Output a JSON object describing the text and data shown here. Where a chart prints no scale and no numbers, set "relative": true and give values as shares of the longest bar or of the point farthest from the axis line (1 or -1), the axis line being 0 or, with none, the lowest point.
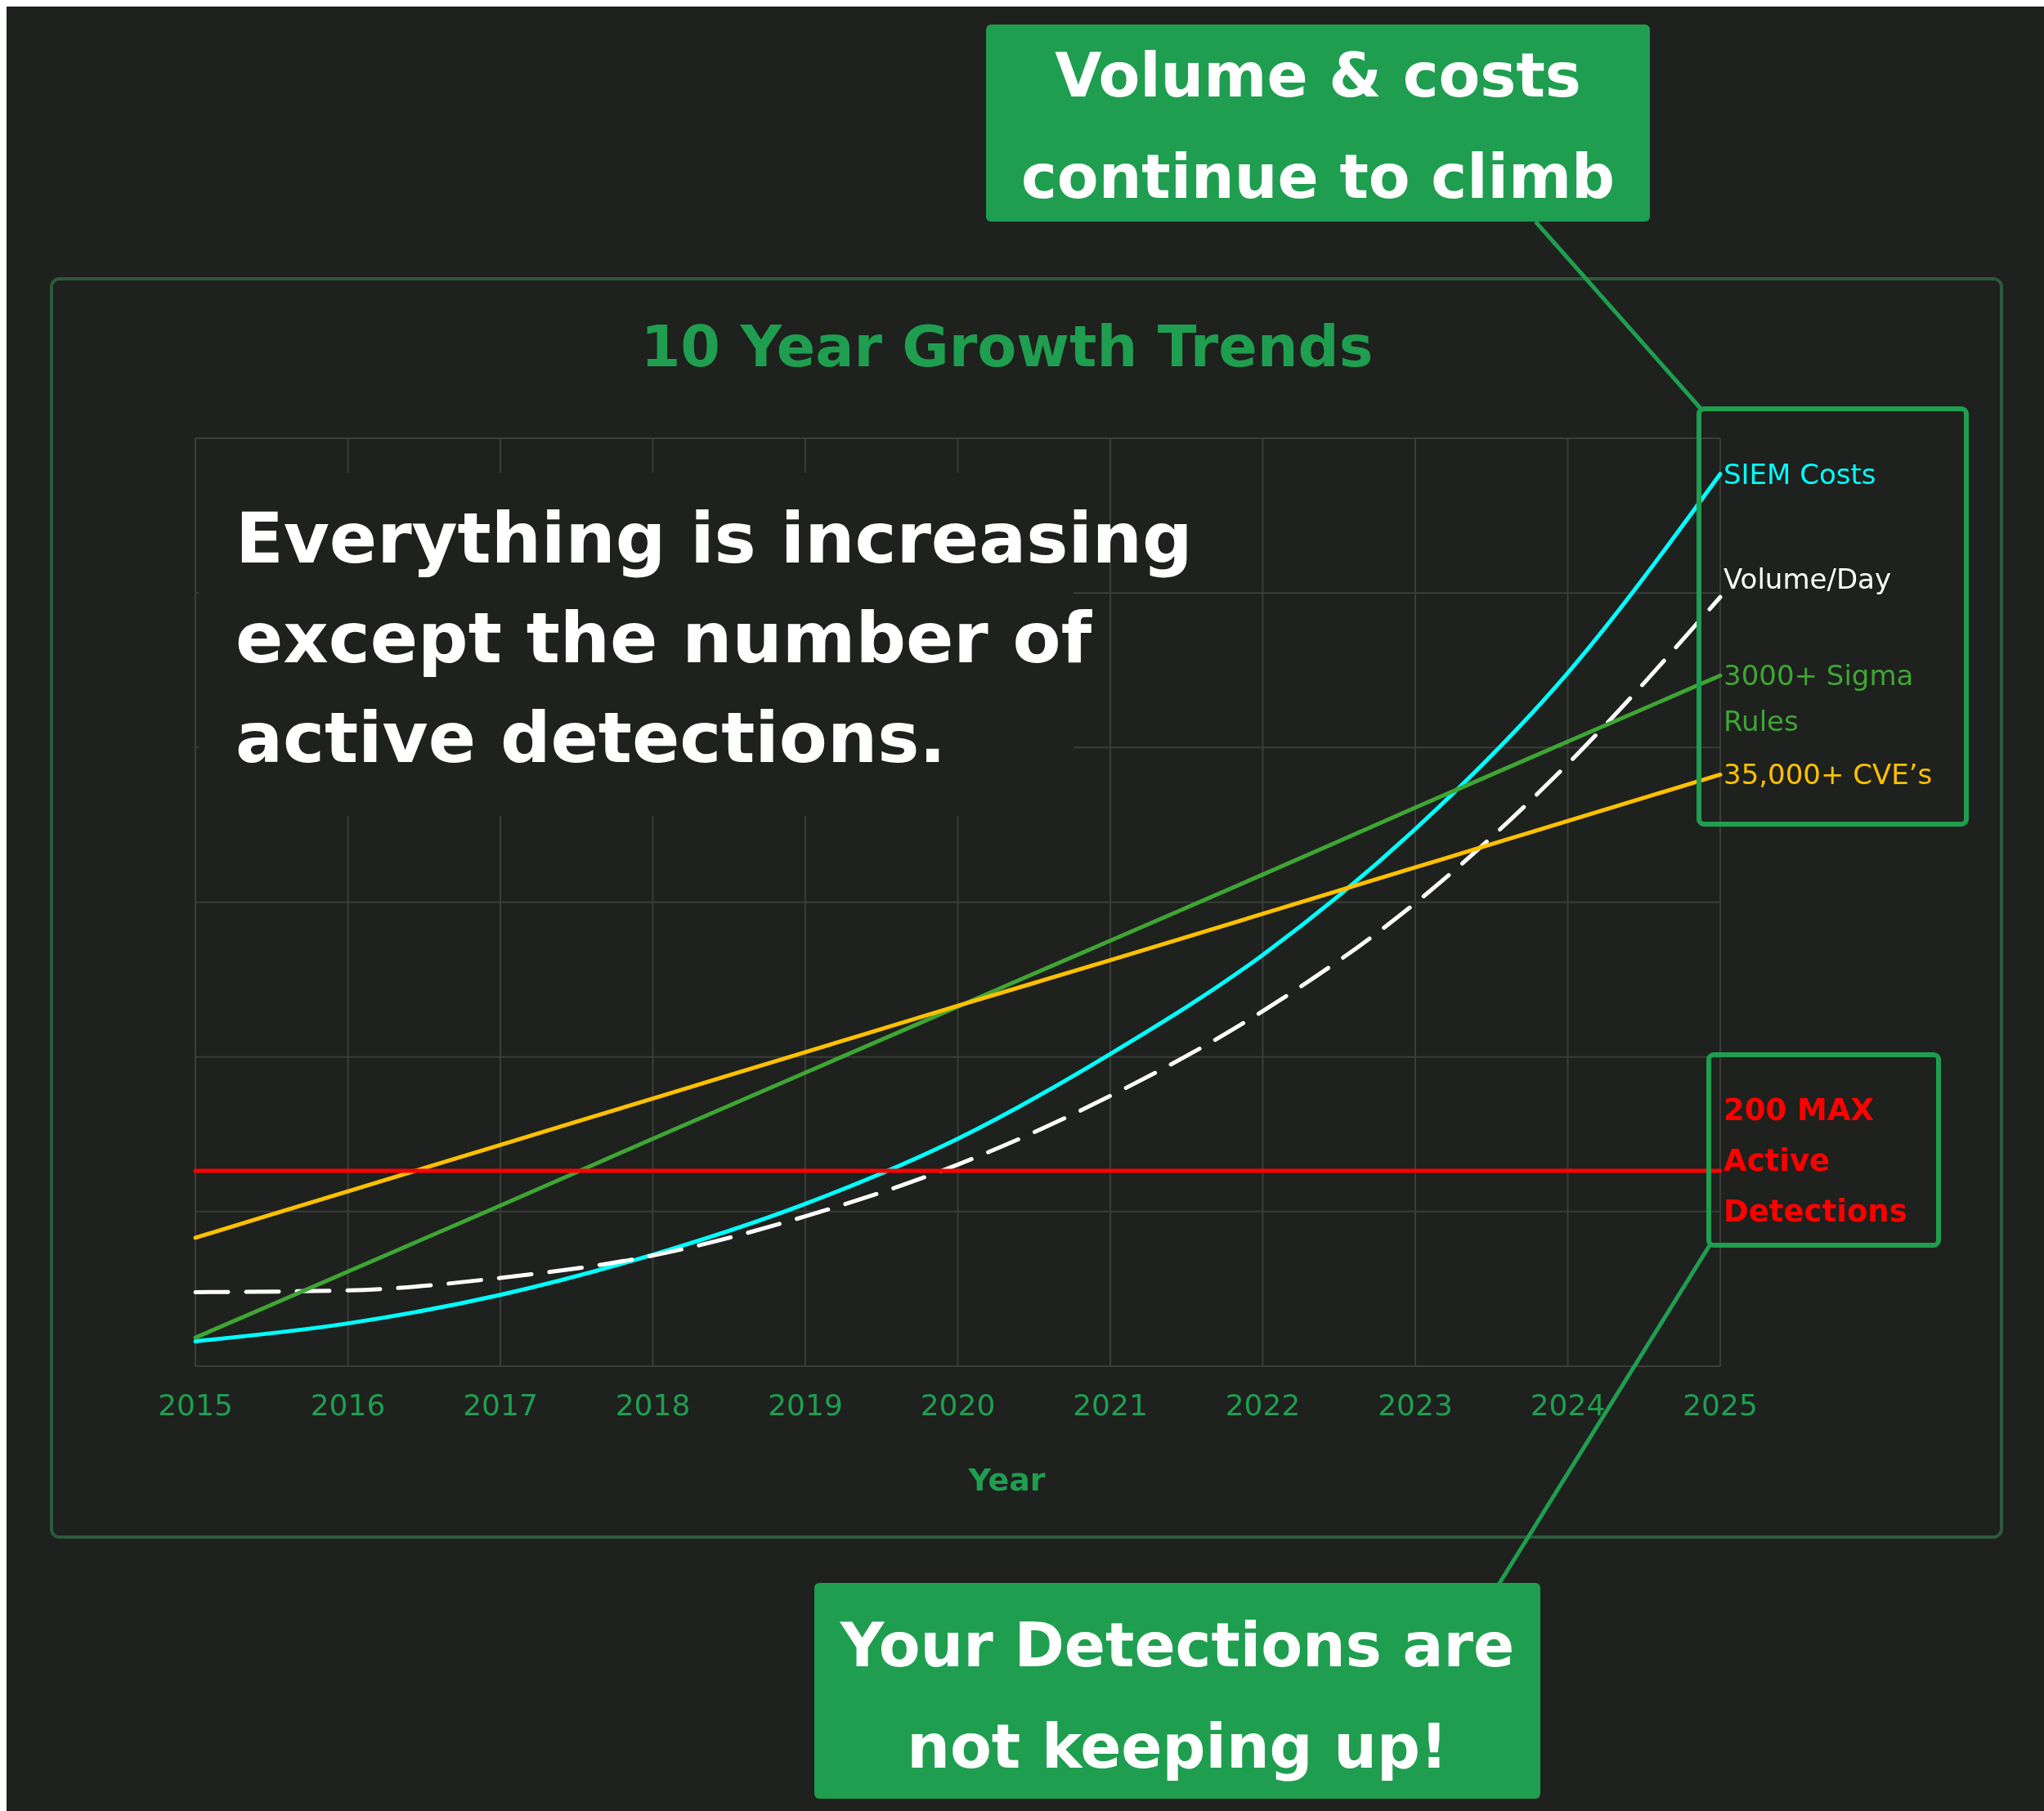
{
  "chart_data": {
    "type": "line",
    "title": "10 Year Growth Trends",
    "xlabel": "Year",
    "relative": true,
    "grid": true,
    "x": [
      2015,
      2016,
      2017,
      2018,
      2019,
      2020,
      2021,
      2022,
      2023,
      2024,
      2025
    ],
    "xlim": [
      2015,
      2025
    ],
    "xticks": [
      2015,
      2016,
      2017,
      2018,
      2019,
      2020,
      2021,
      2022,
      2023,
      2024,
      2025
    ],
    "series": [
      {
        "name": "SIEM Costs",
        "color": "#00ffff",
        "values": [
          0.028,
          0.048,
          0.08,
          0.125,
          0.182,
          0.255,
          0.35,
          0.461,
          0.602,
          0.777,
          1
        ]
      },
      {
        "name": "Volume/Day",
        "color": "#ffffff",
        "line_style": "dashed",
        "values": [
          0.083,
          0.085,
          0.099,
          0.124,
          0.168,
          0.226,
          0.303,
          0.398,
          0.519,
          0.675,
          0.862
        ]
      },
      {
        "name": "3000+ Sigma Rules",
        "color": "#3fa535",
        "values": [
          0.032,
          0.106,
          0.18,
          0.255,
          0.329,
          0.403,
          0.477,
          0.551,
          0.626,
          0.7,
          0.774
        ]
      },
      {
        "name": "35,000+ CVE’s",
        "color": "#ffc000",
        "values": [
          0.144,
          0.196,
          0.248,
          0.3,
          0.352,
          0.404,
          0.455,
          0.507,
          0.559,
          0.611,
          0.663
        ]
      },
      {
        "name": "200 MAX Active Detections",
        "color": "#ff0000",
        "values": [
          0.219,
          0.219,
          0.219,
          0.219,
          0.219,
          0.219,
          0.219,
          0.219,
          0.219,
          0.219,
          0.219
        ]
      }
    ],
    "annotations": [
      "Everything is increasing except the number of active detections.",
      "Volume & costs continue to climb",
      "Your Detections are not keeping up!"
    ]
  }
}
